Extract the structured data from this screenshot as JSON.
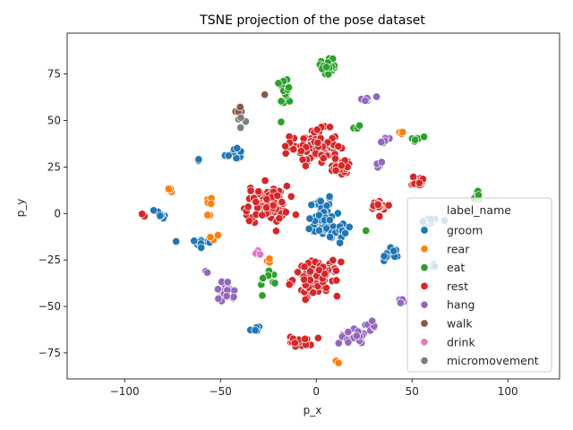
{
  "chart_data": {
    "type": "scatter",
    "title": "TSNE projection of the pose dataset",
    "xlabel": "p_x",
    "ylabel": "p_y",
    "xlim": [
      -130,
      127
    ],
    "ylim": [
      -89,
      97
    ],
    "xticks": [
      -100,
      -50,
      0,
      50,
      100
    ],
    "yticks": [
      -75,
      -50,
      -25,
      0,
      25,
      50,
      75
    ],
    "grid": false,
    "legend": {
      "title": "label_name",
      "placement": "lower-right"
    },
    "series": [
      {
        "name": "groom",
        "color": "#1f77b4",
        "clusters": [
          {
            "x": 3,
            "y": 3,
            "sx": 3,
            "sy": 4,
            "n": 25
          },
          {
            "x": 2,
            "y": -6,
            "sx": 4,
            "sy": 3,
            "n": 22
          },
          {
            "x": 11,
            "y": -9,
            "sx": 5,
            "sy": 4,
            "n": 22
          },
          {
            "x": -43,
            "y": 32,
            "sx": 2.5,
            "sy": 2,
            "n": 12
          },
          {
            "x": -81,
            "y": 0,
            "sx": 1.5,
            "sy": 1.5,
            "n": 8
          },
          {
            "x": -61,
            "y": -16,
            "sx": 3,
            "sy": 2,
            "n": 12
          },
          {
            "x": 39,
            "y": -22,
            "sx": 3,
            "sy": 2.5,
            "n": 14
          },
          {
            "x": 60,
            "y": -4,
            "sx": 3,
            "sy": 1.5,
            "n": 9
          },
          {
            "x": 60,
            "y": -28,
            "sx": 1.5,
            "sy": 1.5,
            "n": 3
          },
          {
            "x": -32,
            "y": -63,
            "sx": 1.5,
            "sy": 1.5,
            "n": 5
          },
          {
            "x": -61,
            "y": 29,
            "sx": 0.8,
            "sy": 0.8,
            "n": 2
          }
        ]
      },
      {
        "name": "rear",
        "color": "#ff7f0e",
        "clusters": [
          {
            "x": -76,
            "y": 13,
            "sx": 1,
            "sy": 1,
            "n": 4
          },
          {
            "x": -56,
            "y": 7,
            "sx": 1.5,
            "sy": 1,
            "n": 5
          },
          {
            "x": -56,
            "y": -1,
            "sx": 0.8,
            "sy": 0.8,
            "n": 2
          },
          {
            "x": -52,
            "y": -13,
            "sx": 1.5,
            "sy": 1,
            "n": 3
          },
          {
            "x": -25,
            "y": -25,
            "sx": 1,
            "sy": 1,
            "n": 3
          },
          {
            "x": 45,
            "y": 44,
            "sx": 1,
            "sy": 1,
            "n": 3
          },
          {
            "x": 11,
            "y": -80,
            "sx": 0.8,
            "sy": 0.8,
            "n": 2
          }
        ]
      },
      {
        "name": "eat",
        "color": "#2ca02c",
        "clusters": [
          {
            "x": 6,
            "y": 79,
            "sx": 2.5,
            "sy": 3,
            "n": 20
          },
          {
            "x": -16,
            "y": 66,
            "sx": 1.5,
            "sy": 4,
            "n": 14
          },
          {
            "x": 21,
            "y": 46,
            "sx": 1,
            "sy": 1,
            "n": 3
          },
          {
            "x": 53,
            "y": 40,
            "sx": 2,
            "sy": 1,
            "n": 6
          },
          {
            "x": 84,
            "y": 9,
            "sx": 1,
            "sy": 2,
            "n": 10
          },
          {
            "x": -25,
            "y": -36,
            "sx": 2,
            "sy": 3.5,
            "n": 10
          },
          {
            "x": 26,
            "y": -9,
            "sx": 0.8,
            "sy": 0.8,
            "n": 2
          }
        ]
      },
      {
        "name": "rest",
        "color": "#d62728",
        "clusters": [
          {
            "x": -1,
            "y": 36,
            "sx": 6,
            "sy": 4.5,
            "n": 85
          },
          {
            "x": 13,
            "y": 25,
            "sx": 3.5,
            "sy": 2.5,
            "n": 25
          },
          {
            "x": -26,
            "y": 5,
            "sx": 5.5,
            "sy": 5,
            "n": 80
          },
          {
            "x": 0,
            "y": -35,
            "sx": 6,
            "sy": 4.5,
            "n": 85
          },
          {
            "x": 33,
            "y": 4,
            "sx": 2.5,
            "sy": 2,
            "n": 18
          },
          {
            "x": 54,
            "y": 17,
            "sx": 2,
            "sy": 1.5,
            "n": 14
          },
          {
            "x": -8,
            "y": -69,
            "sx": 3,
            "sy": 1.5,
            "n": 16
          },
          {
            "x": -90,
            "y": 0,
            "sx": 0.8,
            "sy": 0.8,
            "n": 2
          }
        ]
      },
      {
        "name": "hang",
        "color": "#9467bd",
        "clusters": [
          {
            "x": -48,
            "y": -43,
            "sx": 2.5,
            "sy": 3,
            "n": 18
          },
          {
            "x": 19,
            "y": -66,
            "sx": 3.5,
            "sy": 2,
            "n": 22
          },
          {
            "x": 28,
            "y": -60,
            "sx": 1.5,
            "sy": 1.5,
            "n": 6
          },
          {
            "x": 45,
            "y": -47,
            "sx": 1,
            "sy": 2,
            "n": 6
          },
          {
            "x": 27,
            "y": 63,
            "sx": 1.5,
            "sy": 1.5,
            "n": 6
          },
          {
            "x": 36,
            "y": 39,
            "sx": 1.5,
            "sy": 1,
            "n": 6
          },
          {
            "x": 33,
            "y": 26,
            "sx": 1,
            "sy": 1.5,
            "n": 4
          },
          {
            "x": -58,
            "y": -31,
            "sx": 0.8,
            "sy": 0.8,
            "n": 2
          }
        ]
      },
      {
        "name": "walk",
        "color": "#8c564b",
        "clusters": [
          {
            "x": -39,
            "y": 55,
            "sx": 1.5,
            "sy": 2,
            "n": 6
          },
          {
            "x": -27,
            "y": 65,
            "sx": 0.5,
            "sy": 0.5,
            "n": 1
          }
        ]
      },
      {
        "name": "drink",
        "color": "#e377c2",
        "clusters": [
          {
            "x": -31,
            "y": -21,
            "sx": 1,
            "sy": 1,
            "n": 3
          }
        ]
      },
      {
        "name": "micromovement",
        "color": "#7f7f7f",
        "clusters": [
          {
            "x": -39,
            "y": 50,
            "sx": 1,
            "sy": 1,
            "n": 4
          }
        ]
      }
    ]
  }
}
